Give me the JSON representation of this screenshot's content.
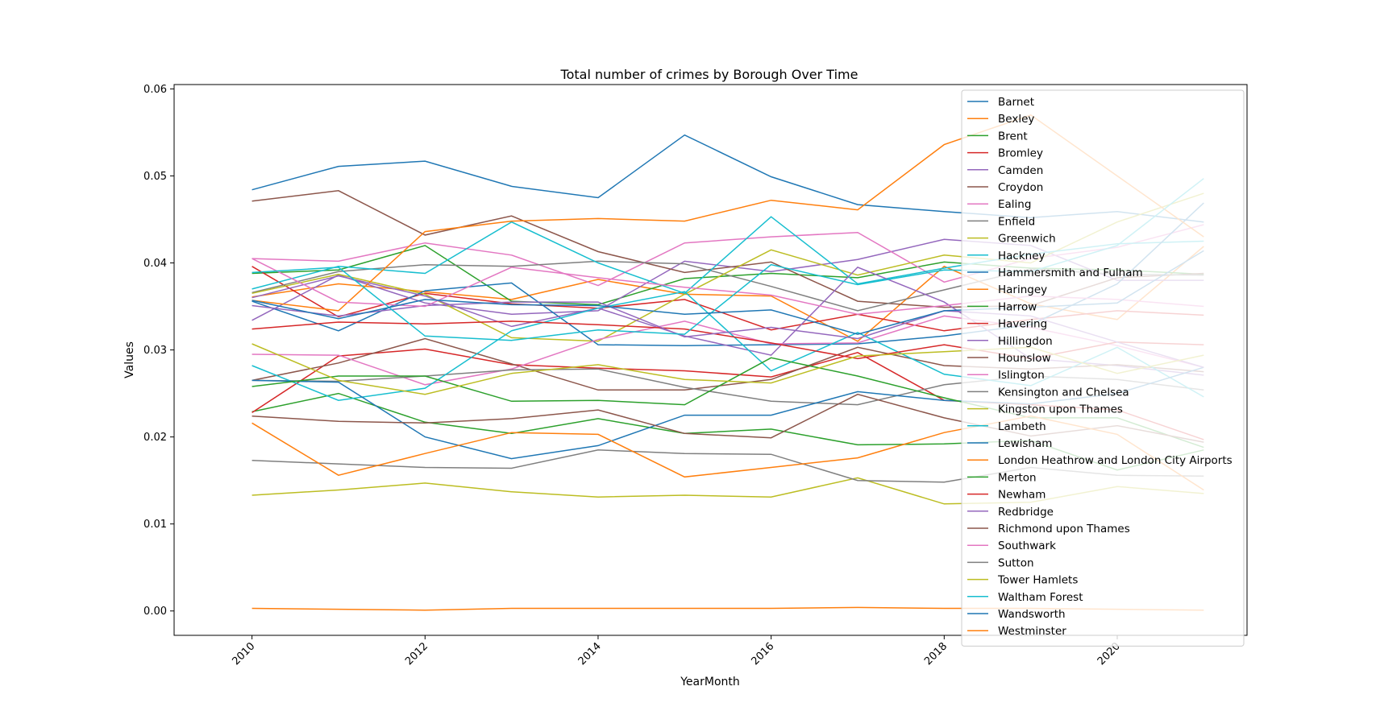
{
  "chart_data": {
    "type": "line",
    "title": "Total number of crimes by Borough Over Time",
    "xlabel": "YearMonth",
    "ylabel": "Values",
    "xlim": [
      2009.1,
      2021.5
    ],
    "ylim": [
      -0.0028,
      0.0605
    ],
    "x_ticks": [
      2010,
      2012,
      2014,
      2016,
      2018,
      2020
    ],
    "y_ticks": [
      "0.00",
      "0.01",
      "0.02",
      "0.03",
      "0.04",
      "0.05",
      "0.06"
    ],
    "y_tick_values": [
      0.0,
      0.01,
      0.02,
      0.03,
      0.04,
      0.05,
      0.06
    ],
    "grid": false,
    "legend_position": "top-right",
    "x": [
      2010,
      2011,
      2012,
      2013,
      2014,
      2015,
      2016,
      2017,
      2018,
      2019,
      2020,
      2021
    ],
    "series": [
      {
        "name": "Barnet",
        "color": "#1f77b4",
        "values": [
          0.0484,
          0.0511,
          0.0517,
          0.0488,
          0.0475,
          0.0547,
          0.0499,
          0.0467,
          0.0459,
          0.0452,
          0.0459,
          0.0447
        ]
      },
      {
        "name": "Bexley",
        "color": "#ff7f0e",
        "values": [
          0.0361,
          0.0376,
          0.0367,
          0.0358,
          0.0381,
          0.0364,
          0.0362,
          0.031,
          0.0396,
          0.0353,
          0.0335,
          0.0419
        ]
      },
      {
        "name": "Brent",
        "color": "#2ca02c",
        "values": [
          0.0388,
          0.0392,
          0.042,
          0.0356,
          0.0352,
          0.0382,
          0.0388,
          0.0383,
          0.0401,
          0.0394,
          0.0392,
          0.0387
        ]
      },
      {
        "name": "Bromley",
        "color": "#d62728",
        "values": [
          0.0396,
          0.0338,
          0.0365,
          0.0353,
          0.0348,
          0.0358,
          0.0323,
          0.0341,
          0.0322,
          0.0335,
          0.0345,
          0.034
        ]
      },
      {
        "name": "Camden",
        "color": "#9467bd",
        "values": [
          0.0334,
          0.0386,
          0.0354,
          0.0341,
          0.0345,
          0.0402,
          0.039,
          0.0404,
          0.0427,
          0.042,
          0.038,
          0.038
        ]
      },
      {
        "name": "Croydon",
        "color": "#8c564b",
        "values": [
          0.0471,
          0.0483,
          0.0432,
          0.0454,
          0.0413,
          0.0389,
          0.0401,
          0.0356,
          0.0349,
          0.0351,
          0.0383,
          0.0388
        ]
      },
      {
        "name": "Ealing",
        "color": "#e377c2",
        "values": [
          0.0405,
          0.0402,
          0.0423,
          0.0409,
          0.0374,
          0.0423,
          0.043,
          0.0435,
          0.0378,
          0.0405,
          0.0418,
          0.0444
        ]
      },
      {
        "name": "Enfield",
        "color": "#7f7f7f",
        "values": [
          0.0366,
          0.039,
          0.0398,
          0.0396,
          0.0402,
          0.0399,
          0.0373,
          0.0345,
          0.0369,
          0.0393,
          0.0387,
          0.0386
        ]
      },
      {
        "name": "Greenwich",
        "color": "#bcbd22",
        "values": [
          0.0365,
          0.0387,
          0.0364,
          0.0314,
          0.031,
          0.0364,
          0.0415,
          0.0386,
          0.0409,
          0.04,
          0.0447,
          0.048
        ]
      },
      {
        "name": "Hackney",
        "color": "#17becf",
        "values": [
          0.037,
          0.0396,
          0.0388,
          0.0447,
          0.04,
          0.0365,
          0.0453,
          0.0376,
          0.0394,
          0.041,
          0.0422,
          0.0425
        ]
      },
      {
        "name": "Hammersmith and Fulham",
        "color": "#1f77b4",
        "values": [
          0.0356,
          0.0322,
          0.0368,
          0.0377,
          0.0306,
          0.0305,
          0.0306,
          0.0307,
          0.0316,
          0.0329,
          0.0376,
          0.0469
        ]
      },
      {
        "name": "Haringey",
        "color": "#ff7f0e",
        "values": [
          0.0357,
          0.0345,
          0.0436,
          0.0448,
          0.0451,
          0.0448,
          0.0472,
          0.0461,
          0.0536,
          0.057,
          0.05,
          0.043
        ]
      },
      {
        "name": "Harrow",
        "color": "#2ca02c",
        "values": [
          0.0229,
          0.025,
          0.0217,
          0.0204,
          0.0221,
          0.0204,
          0.0209,
          0.0191,
          0.0192,
          0.0196,
          0.0162,
          0.0185
        ]
      },
      {
        "name": "Havering",
        "color": "#d62728",
        "values": [
          0.0228,
          0.0293,
          0.0301,
          0.0283,
          0.0279,
          0.0276,
          0.0269,
          0.0297,
          0.0242,
          0.0237,
          0.0231,
          0.0197
        ]
      },
      {
        "name": "Hillingdon",
        "color": "#9467bd",
        "values": [
          0.036,
          0.0385,
          0.0362,
          0.0327,
          0.0348,
          0.0316,
          0.0294,
          0.0395,
          0.0355,
          0.029,
          0.0282,
          0.0271
        ]
      },
      {
        "name": "Hounslow",
        "color": "#8c564b",
        "values": [
          0.0265,
          0.0285,
          0.0313,
          0.0284,
          0.0254,
          0.0254,
          0.0266,
          0.0303,
          0.0282,
          0.0278,
          0.0283,
          0.0275
        ]
      },
      {
        "name": "Islington",
        "color": "#e377c2",
        "values": [
          0.0295,
          0.0294,
          0.026,
          0.0278,
          0.0312,
          0.0333,
          0.0307,
          0.0308,
          0.0339,
          0.0326,
          0.0305,
          0.028
        ]
      },
      {
        "name": "Kensington and Chelsea",
        "color": "#7f7f7f",
        "values": [
          0.0265,
          0.0264,
          0.027,
          0.0277,
          0.0278,
          0.0257,
          0.0241,
          0.0237,
          0.026,
          0.027,
          0.0266,
          0.0254
        ]
      },
      {
        "name": "Kingston upon Thames",
        "color": "#bcbd22",
        "values": [
          0.0133,
          0.0139,
          0.0147,
          0.0137,
          0.0131,
          0.0133,
          0.0131,
          0.0153,
          0.0123,
          0.0125,
          0.0143,
          0.0135
        ]
      },
      {
        "name": "Lambeth",
        "color": "#17becf",
        "values": [
          0.0282,
          0.0242,
          0.0256,
          0.0322,
          0.0348,
          0.0367,
          0.0276,
          0.032,
          0.0272,
          0.0259,
          0.0303,
          0.0246
        ]
      },
      {
        "name": "Lewisham",
        "color": "#1f77b4",
        "values": [
          0.0265,
          0.0263,
          0.02,
          0.0175,
          0.019,
          0.0225,
          0.0225,
          0.0252,
          0.0242,
          0.0238,
          0.025,
          0.028
        ]
      },
      {
        "name": "London Heathrow and London City Airports",
        "color": "#ff7f0e",
        "values": [
          0.0003,
          0.0002,
          0.0001,
          0.0003,
          0.0003,
          0.0003,
          0.0003,
          0.0004,
          0.0003,
          0.0003,
          0.0002,
          0.0001
        ]
      },
      {
        "name": "Merton",
        "color": "#2ca02c",
        "values": [
          0.0258,
          0.027,
          0.027,
          0.0241,
          0.0242,
          0.0237,
          0.0291,
          0.027,
          0.0245,
          0.0222,
          0.0222,
          0.0188
        ]
      },
      {
        "name": "Newham",
        "color": "#d62728",
        "values": [
          0.0324,
          0.0332,
          0.033,
          0.0333,
          0.0329,
          0.0324,
          0.0308,
          0.029,
          0.0306,
          0.029,
          0.0309,
          0.0306
        ]
      },
      {
        "name": "Redbridge",
        "color": "#9467bd",
        "values": [
          0.0351,
          0.0339,
          0.0351,
          0.0355,
          0.0355,
          0.0315,
          0.0326,
          0.0313,
          0.0345,
          0.0339,
          0.0309,
          0.028
        ]
      },
      {
        "name": "Richmond upon Thames",
        "color": "#8c564b",
        "values": [
          0.0224,
          0.0218,
          0.0216,
          0.0221,
          0.0231,
          0.0204,
          0.0199,
          0.0249,
          0.0222,
          0.0201,
          0.0213,
          0.0194
        ]
      },
      {
        "name": "Southwark",
        "color": "#e377c2",
        "values": [
          0.0405,
          0.0355,
          0.035,
          0.0395,
          0.0383,
          0.0372,
          0.0363,
          0.0341,
          0.0351,
          0.0362,
          0.0358,
          0.035
        ]
      },
      {
        "name": "Sutton",
        "color": "#7f7f7f",
        "values": [
          0.0173,
          0.0169,
          0.0165,
          0.0164,
          0.0185,
          0.0181,
          0.018,
          0.015,
          0.0148,
          0.0165,
          0.0156,
          0.0155
        ]
      },
      {
        "name": "Tower Hamlets",
        "color": "#bcbd22",
        "values": [
          0.0307,
          0.0265,
          0.0249,
          0.0273,
          0.0283,
          0.0266,
          0.0262,
          0.0293,
          0.0298,
          0.0303,
          0.0273,
          0.0294
        ]
      },
      {
        "name": "Waltham Forest",
        "color": "#17becf",
        "values": [
          0.0389,
          0.0395,
          0.0316,
          0.0311,
          0.0323,
          0.0318,
          0.0398,
          0.0375,
          0.0392,
          0.039,
          0.042,
          0.0497
        ]
      },
      {
        "name": "Wandsworth",
        "color": "#1f77b4",
        "values": [
          0.0357,
          0.0336,
          0.0358,
          0.0352,
          0.0351,
          0.0341,
          0.0346,
          0.0318,
          0.0345,
          0.0349,
          0.0354,
          0.0414
        ]
      },
      {
        "name": "Westminster",
        "color": "#ff7f0e",
        "values": [
          0.0216,
          0.0156,
          0.0181,
          0.0205,
          0.0203,
          0.0154,
          0.0165,
          0.0176,
          0.0205,
          0.0224,
          0.0203,
          0.0139
        ]
      }
    ]
  }
}
